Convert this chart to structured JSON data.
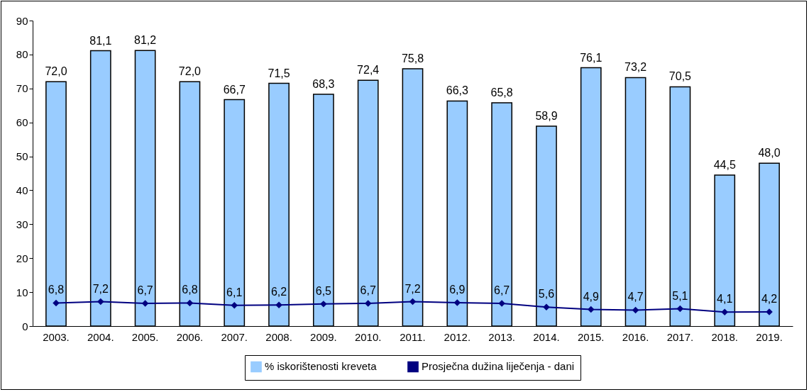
{
  "chart_data": {
    "type": "bar",
    "categories": [
      "2003.",
      "2004.",
      "2005.",
      "2006.",
      "2007.",
      "2008.",
      "2009.",
      "2010.",
      "2011.",
      "2012.",
      "2013.",
      "2014.",
      "2015.",
      "2016.",
      "2017.",
      "2018.",
      "2019."
    ],
    "series": [
      {
        "name": "% iskorištenosti kreveta",
        "color": "#99ccff",
        "values": [
          72.0,
          81.1,
          81.2,
          72.0,
          66.7,
          71.5,
          68.3,
          72.4,
          75.8,
          66.3,
          65.8,
          58.9,
          76.1,
          73.2,
          70.5,
          44.5,
          48.0
        ],
        "value_labels": [
          "72,0",
          "81,1",
          "81,2",
          "72,0",
          "66,7",
          "71,5",
          "68,3",
          "72,4",
          "75,8",
          "66,3",
          "65,8",
          "58,9",
          "76,1",
          "73,2",
          "70,5",
          "44,5",
          "48,0"
        ]
      },
      {
        "name": "Prosječna dužina liječenja - dani",
        "type": "line",
        "color": "#000080",
        "values": [
          6.8,
          7.2,
          6.7,
          6.8,
          6.1,
          6.2,
          6.5,
          6.7,
          7.2,
          6.9,
          6.7,
          5.6,
          4.9,
          4.7,
          5.1,
          4.1,
          4.2
        ],
        "value_labels": [
          "6,8",
          "7,2",
          "6,7",
          "6,8",
          "6,1",
          "6,2",
          "6,5",
          "6,7",
          "7,2",
          "6,9",
          "6,7",
          "5,6",
          "4,9",
          "4,7",
          "5,1",
          "4,1",
          "4,2"
        ]
      }
    ],
    "marker": "diamond",
    "ylim": [
      0,
      90
    ],
    "yticks": [
      0,
      10,
      20,
      30,
      40,
      50,
      60,
      70,
      80,
      90
    ],
    "legend": "bottom"
  }
}
